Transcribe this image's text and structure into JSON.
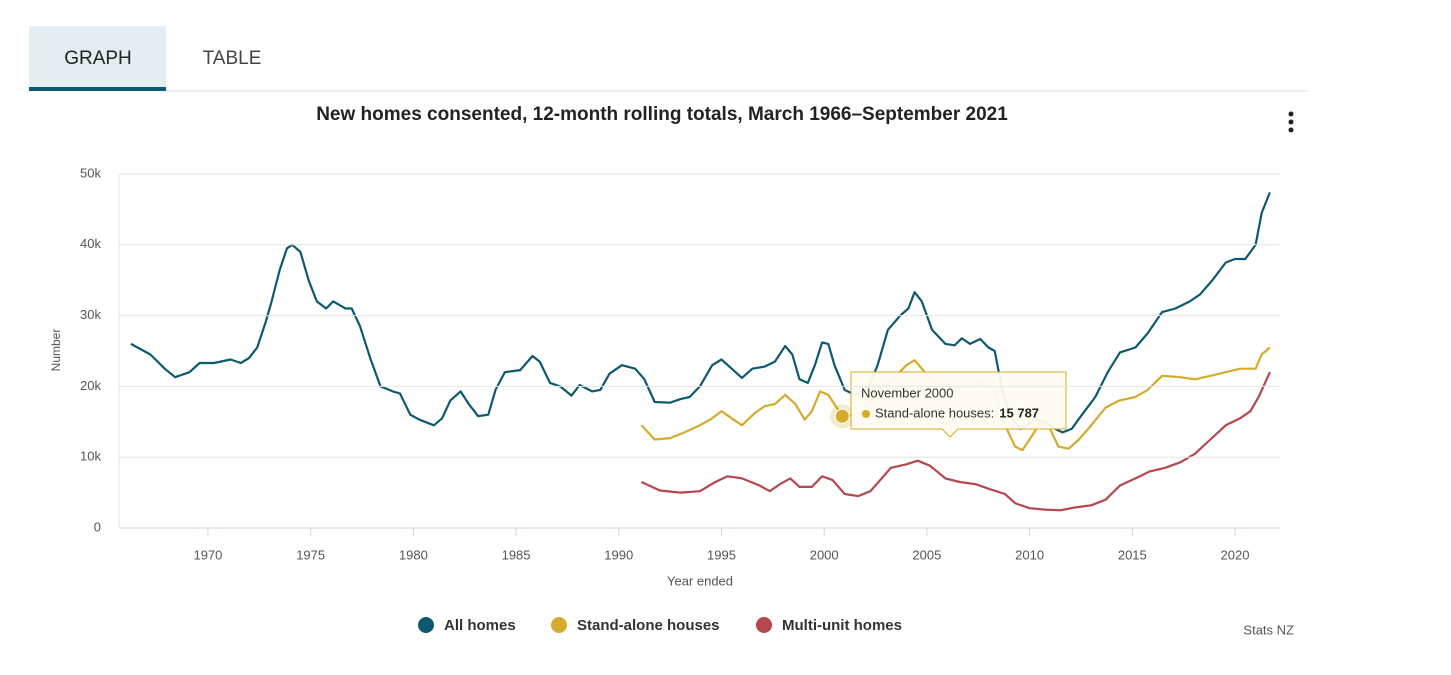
{
  "tabs": [
    "GRAPH",
    "TABLE"
  ],
  "chart_data": {
    "type": "line",
    "title": "New homes consented, 12-month rolling totals, March 1966–September 2021",
    "x_label": "Year ended",
    "y_label": "Number",
    "source": "Stats NZ",
    "xlim": [
      1965.67,
      2022.19
    ],
    "xticks": [
      1970,
      1975,
      1980,
      1985,
      1990,
      1995,
      2000,
      2005,
      2010,
      2015,
      2020
    ],
    "ylim": [
      0,
      50000
    ],
    "yticks": [
      0,
      {
        "value": 10000,
        "label": "10k"
      },
      {
        "value": 20000,
        "label": "20k"
      },
      {
        "value": 30000,
        "label": "30k"
      },
      {
        "value": 40000,
        "label": "40k"
      },
      {
        "value": 50000,
        "label": "50k"
      }
    ],
    "grid": true,
    "legend": "bottom",
    "series": [
      {
        "name": "All homes",
        "color": "#0d5a70",
        "x": [
          1966.25,
          1967.2,
          1967.9,
          1968.4,
          1969.1,
          1969.6,
          1970.3,
          1971.1,
          1971.6,
          1972.0,
          1972.4,
          1972.8,
          1973.1,
          1973.5,
          1973.85,
          1974.1,
          1974.5,
          1974.9,
          1975.3,
          1975.75,
          1976.1,
          1976.7,
          1977.0,
          1977.4,
          1977.9,
          1978.4,
          1979.0,
          1979.35,
          1979.85,
          1980.3,
          1981.0,
          1981.4,
          1981.8,
          1982.3,
          1982.7,
          1983.15,
          1983.65,
          1984.0,
          1984.45,
          1985.2,
          1985.8,
          1986.15,
          1986.65,
          1987.15,
          1987.7,
          1988.1,
          1988.7,
          1989.1,
          1989.55,
          1990.15,
          1990.8,
          1991.25,
          1991.75,
          1992.5,
          1993.0,
          1993.45,
          1993.95,
          1994.55,
          1995.0,
          1995.5,
          1996.0,
          1996.5,
          1997.1,
          1997.6,
          1998.1,
          1998.45,
          1998.8,
          1999.2,
          1999.55,
          1999.9,
          2000.2,
          2000.5,
          2001.0,
          2001.5,
          2002.1,
          2002.6,
          2003.1,
          2003.7,
          2004.1,
          2004.4,
          2004.75,
          2005.25,
          2005.9,
          2006.35,
          2006.7,
          2007.1,
          2007.6,
          2008.0,
          2008.3,
          2008.7,
          2009.15,
          2009.55,
          2009.9,
          2010.25,
          2010.75,
          2011.25,
          2011.6,
          2012.05,
          2012.55,
          2013.2,
          2013.8,
          2014.4,
          2015.15,
          2015.75,
          2016.45,
          2017.1,
          2017.8,
          2018.3,
          2018.9,
          2019.55,
          2020.0,
          2020.5,
          2021.0,
          2021.3,
          2021.7
        ],
        "values": [
          26000,
          24500,
          22500,
          21300,
          22000,
          23300,
          23300,
          23800,
          23300,
          24000,
          25500,
          29000,
          32000,
          36500,
          39500,
          40000,
          39000,
          35000,
          32000,
          31000,
          32000,
          31000,
          31000,
          28500,
          24000,
          20000,
          19300,
          19000,
          16000,
          15300,
          14500,
          15500,
          18000,
          19300,
          17500,
          15800,
          16000,
          19500,
          22000,
          22300,
          24300,
          23500,
          20500,
          20000,
          18700,
          20200,
          19300,
          19500,
          21800,
          23000,
          22500,
          21000,
          17800,
          17700,
          18200,
          18500,
          20000,
          23000,
          23800,
          22500,
          21200,
          22500,
          22800,
          23500,
          25700,
          24500,
          21000,
          20500,
          23000,
          26200,
          26000,
          23000,
          19500,
          18800,
          19500,
          23000,
          28000,
          30000,
          31000,
          33300,
          32000,
          28000,
          26000,
          25800,
          26800,
          26000,
          26700,
          25500,
          25000,
          19000,
          15500,
          14000,
          14500,
          15500,
          15000,
          14000,
          13500,
          14000,
          16000,
          18500,
          22000,
          24800,
          25500,
          27500,
          30500,
          31000,
          32000,
          33000,
          35000,
          37500,
          38000,
          38000,
          40000,
          44500,
          47400
        ]
      },
      {
        "name": "Stand-alone houses",
        "color": "#d4ab2c",
        "x": [
          1991.1,
          1991.75,
          1992.5,
          1993.2,
          1993.95,
          1994.55,
          1995.0,
          1995.5,
          1996.0,
          1996.65,
          1997.1,
          1997.6,
          1998.1,
          1998.6,
          1999.05,
          1999.4,
          1999.8,
          2000.2,
          2000.88,
          2001.2,
          2001.7,
          2002.25,
          2002.8,
          2003.5,
          2004.0,
          2004.4,
          2004.9,
          2005.65,
          2006.35,
          2007.1,
          2007.8,
          2008.3,
          2008.8,
          2009.3,
          2009.65,
          2010.0,
          2010.5,
          2011.0,
          2011.4,
          2011.9,
          2012.4,
          2013.0,
          2013.7,
          2014.35,
          2015.15,
          2015.75,
          2016.45,
          2017.35,
          2018.05,
          2018.8,
          2019.55,
          2020.25,
          2021.0,
          2021.3,
          2021.7
        ],
        "values": [
          14500,
          12500,
          12700,
          13500,
          14500,
          15500,
          16500,
          15500,
          14500,
          16300,
          17200,
          17500,
          18800,
          17500,
          15300,
          16500,
          19300,
          18800,
          15787,
          15800,
          16200,
          17800,
          19500,
          21500,
          23000,
          23700,
          22000,
          20000,
          19800,
          20000,
          20500,
          19500,
          14500,
          11500,
          11000,
          12500,
          14800,
          14000,
          11500,
          11200,
          12500,
          14500,
          17000,
          18000,
          18500,
          19500,
          21500,
          21300,
          21000,
          21500,
          22000,
          22500,
          22500,
          24500,
          25500
        ]
      },
      {
        "name": "Multi-unit homes",
        "color": "#b5474f",
        "x": [
          1991.1,
          1992.0,
          1993.0,
          1993.95,
          1994.7,
          1995.3,
          1996.0,
          1996.85,
          1997.35,
          1997.85,
          1998.35,
          1998.8,
          1999.4,
          1999.9,
          2000.4,
          2001.0,
          2001.65,
          2002.25,
          2002.8,
          2003.25,
          2004.0,
          2004.55,
          2005.15,
          2005.9,
          2006.6,
          2007.35,
          2008.05,
          2008.8,
          2009.3,
          2010.0,
          2010.75,
          2011.5,
          2012.2,
          2013.0,
          2013.7,
          2014.4,
          2015.15,
          2015.85,
          2016.6,
          2017.35,
          2018.05,
          2018.8,
          2019.55,
          2020.25,
          2020.75,
          2021.15,
          2021.7
        ],
        "values": [
          6500,
          5300,
          5000,
          5200,
          6500,
          7300,
          7000,
          6000,
          5200,
          6200,
          7000,
          5800,
          5800,
          7300,
          6800,
          4800,
          4500,
          5200,
          7000,
          8500,
          9000,
          9500,
          8800,
          7000,
          6500,
          6200,
          5500,
          4800,
          3500,
          2800,
          2600,
          2500,
          2900,
          3200,
          4000,
          6000,
          7000,
          8000,
          8500,
          9300,
          10500,
          12500,
          14500,
          15500,
          16500,
          18500,
          22000
        ]
      }
    ],
    "tooltip": {
      "date": "November 2000",
      "label": "Stand-alone houses:",
      "value_label": "15 787"
    }
  }
}
